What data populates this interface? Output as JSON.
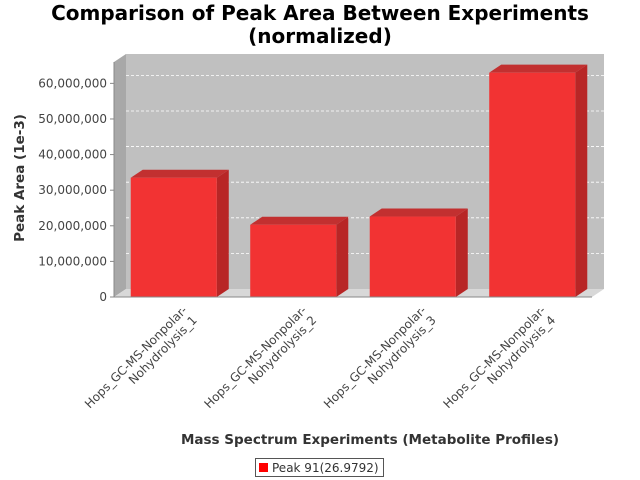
{
  "chart_data": {
    "type": "bar",
    "title_lines": [
      "Comparison of Peak Area Between Experiments",
      "(normalized)"
    ],
    "xlabel": "Mass Spectrum Experiments (Metabolite Profiles)",
    "ylabel": "Peak Area (1e-3)",
    "categories": [
      [
        "Hops_GC-MS-Nonpolar-",
        "Nohydrolysis_1"
      ],
      [
        "Hops_GC-MS-Nonpolar-",
        "Nohydrolysis_2"
      ],
      [
        "Hops_GC-MS-Nonpolar-",
        "Nohydrolysis_3"
      ],
      [
        "Hops_GC-MS-Nonpolar-",
        "Nohydrolysis_4"
      ]
    ],
    "series": [
      {
        "name": "Peak 91(26.9792)",
        "color": "#ff0000",
        "values": [
          33500000,
          20300000,
          22600000,
          63000000
        ]
      }
    ],
    "yticks": [
      0,
      10000000,
      20000000,
      30000000,
      40000000,
      50000000,
      60000000
    ],
    "ytick_labels": [
      "0",
      "10,000,000",
      "20,000,000",
      "30,000,000",
      "40,000,000",
      "50,000,000",
      "60,000,000"
    ],
    "ylim": [
      0,
      66000000
    ],
    "grid": true,
    "legend_position": "bottom",
    "plot_background": "#c0c0c0",
    "bar_style": "3d"
  }
}
